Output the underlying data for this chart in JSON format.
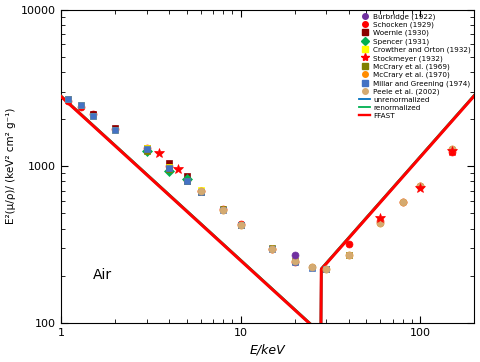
{
  "title": "",
  "xlabel": "E/keV",
  "ylabel": "E²(μ/ρ)/ (keV² cm² g⁻¹)",
  "annotation": "Air",
  "xlim": [
    1,
    200
  ],
  "ylim": [
    100,
    10000
  ],
  "background_color": "#ffffff",
  "datasets": {
    "Burbridge (1922)": {
      "E": [
        20.0
      ],
      "Y": [
        270
      ],
      "color": "#7030a0",
      "marker": "o",
      "ms": 5,
      "zorder": 8
    },
    "Schocken (1929)": {
      "E": [
        1.1,
        1.3,
        1.5,
        2.0,
        3.0,
        4.0,
        5.0,
        6.0,
        8.0,
        10.0,
        15.0,
        20.0,
        40.0,
        60.0,
        80.0,
        100.0,
        150.0
      ],
      "Y": [
        2600,
        2400,
        2150,
        1720,
        1310,
        1010,
        820,
        700,
        535,
        430,
        295,
        245,
        320,
        450,
        590,
        745,
        1230
      ],
      "color": "#ff0000",
      "marker": "o",
      "ms": 5,
      "zorder": 6
    },
    "Woernle (1930)": {
      "E": [
        1.1,
        1.5,
        2.0,
        3.0,
        4.0,
        5.0
      ],
      "Y": [
        2700,
        2150,
        1750,
        1310,
        1050,
        870
      ],
      "color": "#8B0000",
      "marker": "s",
      "ms": 5,
      "zorder": 6
    },
    "Spencer (1931)": {
      "E": [
        3.0,
        4.0,
        5.0
      ],
      "Y": [
        1260,
        940,
        830
      ],
      "color": "#00b050",
      "marker": "D",
      "ms": 5,
      "zorder": 6
    },
    "Crowther and Orton (1932)": {
      "E": [
        1.1,
        1.3,
        1.5,
        2.0,
        3.0,
        4.0,
        5.0,
        6.0
      ],
      "Y": [
        2700,
        2450,
        2100,
        1700,
        1300,
        990,
        810,
        705
      ],
      "color": "#ffff00",
      "marker": "s",
      "ms": 5,
      "zorder": 6
    },
    "Stockmeyer (1932)": {
      "E": [
        3.5,
        4.5,
        60.0,
        100.0,
        150.0
      ],
      "Y": [
        1210,
        960,
        465,
        730,
        1260
      ],
      "color": "#ff0000",
      "marker": "*",
      "ms": 7,
      "zorder": 7
    },
    "McCrary et al. (1969)": {
      "E": [
        3.0,
        4.0,
        5.0,
        6.0,
        8.0,
        10.0,
        15.0,
        20.0,
        30.0,
        40.0
      ],
      "Y": [
        1260,
        960,
        800,
        690,
        535,
        425,
        300,
        248,
        222,
        272
      ],
      "color": "#808000",
      "marker": "s",
      "ms": 5,
      "zorder": 6
    },
    "McCrary et al. (1970)": {
      "E": [
        6.0,
        8.0,
        10.0,
        15.0,
        20.0,
        25.0,
        30.0,
        40.0,
        60.0,
        80.0,
        100.0,
        150.0
      ],
      "Y": [
        695,
        530,
        420,
        298,
        248,
        228,
        220,
        272,
        435,
        595,
        748,
        1280
      ],
      "color": "#ff8c00",
      "marker": "o",
      "ms": 5,
      "zorder": 6
    },
    "Millar and Greening (1974)": {
      "E": [
        1.1,
        1.3,
        1.5,
        2.0,
        3.0,
        4.0,
        5.0,
        6.0,
        8.0,
        10.0,
        15.0,
        20.0,
        25.0,
        30.0
      ],
      "Y": [
        2700,
        2460,
        2100,
        1710,
        1290,
        980,
        810,
        690,
        530,
        420,
        298,
        245,
        224,
        220
      ],
      "color": "#4472c4",
      "marker": "s",
      "ms": 5,
      "zorder": 6
    },
    "Peele et al. (2002)": {
      "E": [
        6.0,
        8.0,
        10.0,
        15.0,
        20.0,
        25.0,
        30.0,
        40.0,
        60.0,
        80.0,
        100.0,
        150.0
      ],
      "Y": [
        700,
        530,
        420,
        298,
        248,
        228,
        220,
        272,
        436,
        596,
        748,
        1280
      ],
      "color": "#d4aa70",
      "marker": "o",
      "ms": 5,
      "zorder": 6
    }
  },
  "line_entries": [
    {
      "label": "unrenormalized",
      "color": "#0070c0",
      "lw": 1.8
    },
    {
      "label": "renormalized",
      "color": "#00b050",
      "lw": 1.8
    },
    {
      "label": "FFAST",
      "color": "#ff0000",
      "lw": 2.2
    }
  ]
}
